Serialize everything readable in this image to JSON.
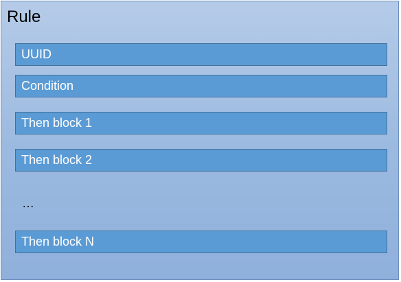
{
  "rule": {
    "title": "Rule",
    "blocks": [
      {
        "label": "UUID"
      },
      {
        "label": "Condition"
      },
      {
        "label": "Then block 1"
      },
      {
        "label": "Then block 2"
      },
      {
        "label": "Then block N"
      }
    ],
    "ellipsis": "…"
  },
  "colors": {
    "container_bg": "#9dbbe0",
    "block_fill": "#5b9bd5",
    "block_border": "#41719c",
    "block_text": "#ffffff"
  }
}
